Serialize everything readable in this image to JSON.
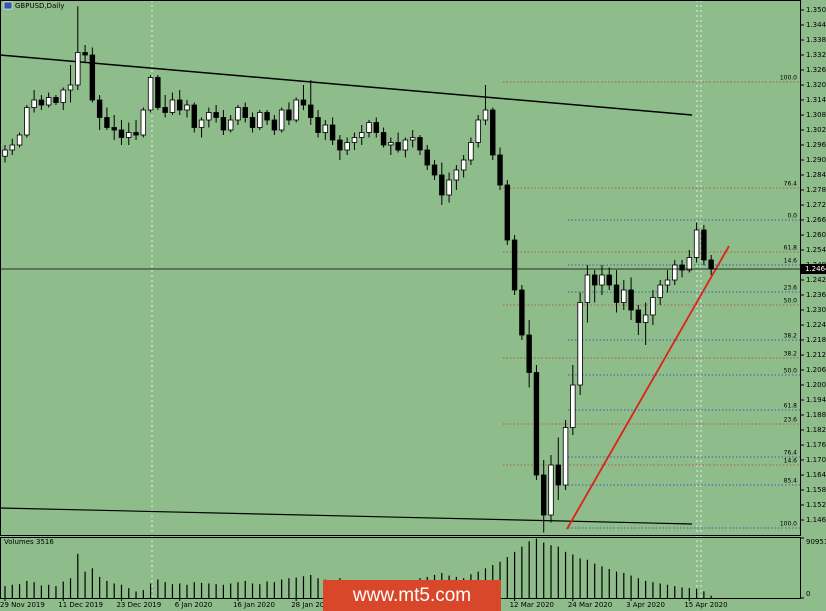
{
  "chart_data": {
    "type": "candlestick",
    "title": "GBPUSD,Daily",
    "watermark": "www.mt5.com",
    "categories": [
      "29 Nov 2019",
      null,
      null,
      null,
      null,
      null,
      null,
      null,
      "11 Dec 2019",
      null,
      null,
      null,
      null,
      null,
      null,
      null,
      "23 Dec 2019",
      null,
      null,
      null,
      null,
      null,
      null,
      null,
      "6 Jan 2020",
      null,
      null,
      null,
      null,
      null,
      null,
      null,
      "16 Jan 2020",
      null,
      null,
      null,
      null,
      null,
      null,
      null,
      "28 Jan 2020",
      null,
      null,
      null,
      null,
      null,
      null,
      null,
      null,
      null,
      null,
      null,
      null,
      null,
      null,
      null,
      null,
      null,
      null,
      null,
      null,
      null,
      null,
      null,
      null,
      null,
      null,
      null,
      null,
      null,
      "12 Mar 2020",
      null,
      null,
      null,
      null,
      null,
      null,
      null,
      "24 Mar 2020",
      null,
      null,
      null,
      null,
      null,
      null,
      null,
      "3 Apr 2020",
      null,
      null,
      null,
      null,
      null,
      null,
      null,
      "15 Apr 2020",
      null,
      null,
      null
    ],
    "open": [
      1.2915,
      1.294,
      1.296,
      1.3,
      1.311,
      1.314,
      1.312,
      1.315,
      1.313,
      1.318,
      1.32,
      1.333,
      1.332,
      1.314,
      1.307,
      1.303,
      1.302,
      1.299,
      1.301,
      1.3,
      1.31,
      1.323,
      1.311,
      1.309,
      1.314,
      1.31,
      1.312,
      1.303,
      1.306,
      1.309,
      1.307,
      1.302,
      1.306,
      1.311,
      1.307,
      1.303,
      1.309,
      1.306,
      1.302,
      1.31,
      1.306,
      1.314,
      1.312,
      1.307,
      1.301,
      1.304,
      1.298,
      1.294,
      1.297,
      1.299,
      1.301,
      1.305,
      1.301,
      1.296,
      1.297,
      1.294,
      1.298,
      1.299,
      1.294,
      1.288,
      1.284,
      1.276,
      1.282,
      1.286,
      1.29,
      1.297,
      1.306,
      1.31,
      1.292,
      1.28,
      1.258,
      1.238,
      1.22,
      1.205,
      1.164,
      1.148,
      1.168,
      1.16,
      1.183,
      1.2,
      1.233,
      1.244,
      1.24,
      1.244,
      1.24,
      1.233,
      1.238,
      1.23,
      1.225,
      1.228,
      1.235,
      1.24,
      1.242,
      1.248,
      1.246,
      1.251,
      1.262,
      1.25
    ],
    "high": [
      1.296,
      1.2985,
      1.301,
      1.312,
      1.318,
      1.316,
      1.317,
      1.316,
      1.319,
      1.328,
      1.3515,
      1.336,
      1.335,
      1.316,
      1.311,
      1.308,
      1.306,
      1.305,
      1.306,
      1.311,
      1.324,
      1.324,
      1.316,
      1.317,
      1.318,
      1.314,
      1.313,
      1.307,
      1.311,
      1.312,
      1.31,
      1.308,
      1.312,
      1.313,
      1.309,
      1.31,
      1.31,
      1.308,
      1.311,
      1.313,
      1.315,
      1.32,
      1.322,
      1.31,
      1.306,
      1.307,
      1.3,
      1.299,
      1.301,
      1.304,
      1.306,
      1.307,
      1.303,
      1.299,
      1.301,
      1.299,
      1.302,
      1.3,
      1.296,
      1.29,
      1.289,
      1.285,
      1.288,
      1.292,
      1.299,
      1.308,
      1.32,
      1.311,
      1.295,
      1.282,
      1.26,
      1.24,
      1.226,
      1.208,
      1.17,
      1.172,
      1.179,
      1.186,
      1.208,
      1.237,
      1.248,
      1.246,
      1.248,
      1.247,
      1.246,
      1.242,
      1.243,
      1.232,
      1.233,
      1.238,
      1.242,
      1.246,
      1.25,
      1.25,
      1.254,
      1.265,
      1.264,
      1.252
    ],
    "low": [
      1.289,
      1.292,
      1.295,
      1.299,
      1.309,
      1.31,
      1.311,
      1.312,
      1.31,
      1.313,
      1.318,
      1.329,
      1.313,
      1.302,
      1.302,
      1.298,
      1.296,
      1.296,
      1.298,
      1.299,
      1.309,
      1.31,
      1.307,
      1.308,
      1.308,
      1.307,
      1.301,
      1.299,
      1.303,
      1.305,
      1.3,
      1.301,
      1.304,
      1.305,
      1.301,
      1.302,
      1.304,
      1.3,
      1.301,
      1.304,
      1.305,
      1.31,
      1.304,
      1.299,
      1.298,
      1.296,
      1.29,
      1.292,
      1.294,
      1.296,
      1.299,
      1.299,
      1.295,
      1.292,
      1.293,
      1.291,
      1.295,
      1.292,
      1.286,
      1.282,
      1.272,
      1.273,
      1.278,
      1.283,
      1.288,
      1.295,
      1.304,
      1.29,
      1.278,
      1.256,
      1.236,
      1.218,
      1.199,
      1.162,
      1.141,
      1.145,
      1.154,
      1.158,
      1.18,
      1.196,
      1.225,
      1.233,
      1.236,
      1.238,
      1.229,
      1.23,
      1.226,
      1.22,
      1.216,
      1.224,
      1.232,
      1.237,
      1.24,
      1.243,
      1.245,
      1.249,
      1.248,
      1.244
    ],
    "close": [
      1.294,
      1.296,
      1.3,
      1.311,
      1.314,
      1.312,
      1.315,
      1.313,
      1.318,
      1.32,
      1.333,
      1.332,
      1.314,
      1.307,
      1.303,
      1.302,
      1.299,
      1.301,
      1.3,
      1.31,
      1.323,
      1.311,
      1.309,
      1.314,
      1.31,
      1.312,
      1.303,
      1.306,
      1.309,
      1.307,
      1.302,
      1.306,
      1.311,
      1.307,
      1.303,
      1.309,
      1.306,
      1.302,
      1.31,
      1.306,
      1.314,
      1.312,
      1.307,
      1.301,
      1.304,
      1.298,
      1.294,
      1.297,
      1.299,
      1.301,
      1.305,
      1.301,
      1.296,
      1.297,
      1.294,
      1.298,
      1.299,
      1.294,
      1.288,
      1.284,
      1.276,
      1.282,
      1.286,
      1.29,
      1.297,
      1.306,
      1.31,
      1.292,
      1.28,
      1.258,
      1.238,
      1.22,
      1.205,
      1.164,
      1.148,
      1.168,
      1.16,
      1.183,
      1.2,
      1.233,
      1.244,
      1.24,
      1.244,
      1.24,
      1.233,
      1.238,
      1.23,
      1.225,
      1.228,
      1.235,
      1.24,
      1.242,
      1.248,
      1.246,
      1.251,
      1.262,
      1.25,
      1.2464
    ],
    "bull_color": "#ffffff",
    "bear_color": "#000000",
    "ylim": [
      1.14,
      1.354
    ],
    "yticks": [
      {
        "value": 1.146,
        "label": "1.1460"
      },
      {
        "value": 1.152,
        "label": "1.1520"
      },
      {
        "value": 1.158,
        "label": "1.1580"
      },
      {
        "value": 1.164,
        "label": "1.1640"
      },
      {
        "value": 1.17,
        "label": "1.1700"
      },
      {
        "value": 1.176,
        "label": "1.1760"
      },
      {
        "value": 1.182,
        "label": "1.1820"
      },
      {
        "value": 1.188,
        "label": "1.1880"
      },
      {
        "value": 1.194,
        "label": "1.1940"
      },
      {
        "value": 1.2,
        "label": "1.2000"
      },
      {
        "value": 1.206,
        "label": "1.2060"
      },
      {
        "value": 1.212,
        "label": "1.2120"
      },
      {
        "value": 1.218,
        "label": "1.2180"
      },
      {
        "value": 1.224,
        "label": "1.2240"
      },
      {
        "value": 1.23,
        "label": "1.2300"
      },
      {
        "value": 1.236,
        "label": "1.2360"
      },
      {
        "value": 1.242,
        "label": "1.2420"
      },
      {
        "value": 1.248,
        "label": "1.2480"
      },
      {
        "value": 1.254,
        "label": "1.2540"
      },
      {
        "value": 1.26,
        "label": "1.2600"
      },
      {
        "value": 1.266,
        "label": "1.2660"
      },
      {
        "value": 1.272,
        "label": "1.2720"
      },
      {
        "value": 1.278,
        "label": "1.2780"
      },
      {
        "value": 1.284,
        "label": "1.2840"
      },
      {
        "value": 1.29,
        "label": "1.2900"
      },
      {
        "value": 1.296,
        "label": "1.2960"
      },
      {
        "value": 1.302,
        "label": "1.3020"
      },
      {
        "value": 1.308,
        "label": "1.3080"
      },
      {
        "value": 1.314,
        "label": "1.3140"
      },
      {
        "value": 1.32,
        "label": "1.3200"
      },
      {
        "value": 1.326,
        "label": "1.3260"
      },
      {
        "value": 1.332,
        "label": "1.3320"
      },
      {
        "value": 1.338,
        "label": "1.3380"
      },
      {
        "value": 1.344,
        "label": "1.3440"
      },
      {
        "value": 1.35,
        "label": "1.3500"
      }
    ],
    "current_price": 1.2464,
    "fibo_red": {
      "color": "#c0392b",
      "levels": [
        {
          "label": "100.0",
          "value": 1.3212
        },
        {
          "label": "76.4",
          "value": 1.2788
        },
        {
          "label": "61.8",
          "value": 1.2532
        },
        {
          "label": "50.0",
          "value": 1.232
        },
        {
          "label": "38.2",
          "value": 1.2108
        },
        {
          "label": "23.6",
          "value": 1.1844
        },
        {
          "label": "14.6",
          "value": 1.168
        }
      ]
    },
    "fibo_blue": {
      "color": "#1f3fbf",
      "levels": [
        {
          "label": "0.0",
          "value": 1.266
        },
        {
          "label": "14.6",
          "value": 1.248
        },
        {
          "label": "23.6",
          "value": 1.2372
        },
        {
          "label": "38.2",
          "value": 1.218
        },
        {
          "label": "50.0",
          "value": 1.204
        },
        {
          "label": "61.8",
          "value": 1.19
        },
        {
          "label": "76.4",
          "value": 1.1712
        },
        {
          "label": "85.4",
          "value": 1.16
        },
        {
          "label": "100.0",
          "value": 1.1428
        }
      ]
    },
    "volume": {
      "title": "Volumes",
      "color": "#000000",
      "values": [
        18000,
        20000,
        21000,
        26000,
        24000,
        19000,
        20000,
        18000,
        25000,
        30000,
        67000,
        40000,
        45000,
        32000,
        26000,
        22000,
        20000,
        15000,
        10000,
        12000,
        22000,
        28000,
        24000,
        21000,
        22000,
        20000,
        24000,
        23000,
        22000,
        21000,
        20000,
        22000,
        24000,
        26000,
        22000,
        21000,
        25000,
        24000,
        28000,
        30000,
        31000,
        33000,
        35000,
        30000,
        28000,
        26000,
        30000,
        25000,
        24000,
        22000,
        26000,
        25000,
        27000,
        24000,
        22000,
        25000,
        26000,
        30000,
        32000,
        35000,
        38000,
        34000,
        32000,
        30000,
        36000,
        40000,
        45000,
        50000,
        55000,
        62000,
        70000,
        78000,
        86000,
        90000,
        84000,
        80000,
        78000,
        70000,
        66000,
        60000,
        58000,
        52000,
        48000,
        44000,
        40000,
        38000,
        34000,
        30000,
        26000,
        24000,
        22000,
        20000,
        18000,
        16000,
        15000,
        14000,
        10000,
        3516
      ],
      "ylim": [
        0,
        90951
      ],
      "yticks": [
        0,
        90951
      ]
    }
  }
}
